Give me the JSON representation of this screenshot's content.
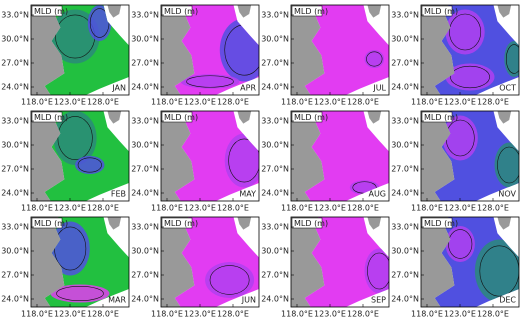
{
  "label": "MLD (m)",
  "yticks": [
    "33.0°N",
    "30.0°N",
    "27.0°N",
    "24.0°N"
  ],
  "xticks": [
    "118.0°E",
    "123.0°E",
    "128.0°E"
  ],
  "panels": [
    {
      "month": "JAN"
    },
    {
      "month": "APR"
    },
    {
      "month": "JUL"
    },
    {
      "month": "OCT"
    },
    {
      "month": "FEB"
    },
    {
      "month": "MAY"
    },
    {
      "month": "AUG"
    },
    {
      "month": "NOV"
    },
    {
      "month": "MAR"
    },
    {
      "month": "JUN"
    },
    {
      "month": "SEP"
    },
    {
      "month": "DEC"
    }
  ]
}
